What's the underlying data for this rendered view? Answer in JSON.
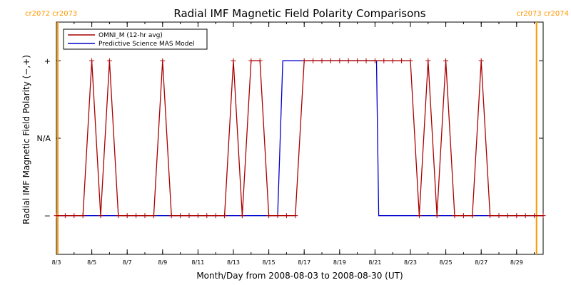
{
  "chart_data": {
    "type": "line",
    "title": "Radial IMF Magnetic Field Polarity Comparisons",
    "xlabel": "Month/Day from 2008-08-03 to 2008-08-30 (UT)",
    "ylabel": "Radial IMF Magnetic Field Polarity (−,+)",
    "xlim": [
      "2008-08-03",
      "2008-08-30 12:00"
    ],
    "ylim": [
      -1.5,
      1.5
    ],
    "x_tick_labels": [
      "8/3",
      "8/5",
      "8/7",
      "8/9",
      "8/11",
      "8/13",
      "8/15",
      "8/17",
      "8/19",
      "8/21",
      "8/23",
      "8/25",
      "8/27",
      "8/29"
    ],
    "x_tick_values": [
      "2008-08-03",
      "2008-08-05",
      "2008-08-07",
      "2008-08-09",
      "2008-08-11",
      "2008-08-13",
      "2008-08-15",
      "2008-08-17",
      "2008-08-19",
      "2008-08-21",
      "2008-08-23",
      "2008-08-25",
      "2008-08-27",
      "2008-08-29"
    ],
    "y_ticks": [
      {
        "value": 1,
        "label": "+"
      },
      {
        "value": 0,
        "label": "N/A"
      },
      {
        "value": -1,
        "label": "−"
      }
    ],
    "legend_position": "top-left",
    "carrington_markers": [
      {
        "x": "2008-08-03",
        "label": "cr2072 cr2073",
        "side": "left"
      },
      {
        "x": "2008-08-30 03:00",
        "label": "cr2073 cr2074",
        "side": "right"
      }
    ],
    "series": [
      {
        "name": "OMNI_M (12-hr avg)",
        "color": "#aa0000",
        "markers": true,
        "points": [
          [
            "2008-08-03 00:00",
            -1
          ],
          [
            "2008-08-03 12:00",
            -1
          ],
          [
            "2008-08-04 00:00",
            -1
          ],
          [
            "2008-08-04 12:00",
            -1
          ],
          [
            "2008-08-05 00:00",
            1
          ],
          [
            "2008-08-05 12:00",
            -1
          ],
          [
            "2008-08-06 00:00",
            1
          ],
          [
            "2008-08-06 12:00",
            -1
          ],
          [
            "2008-08-07 00:00",
            -1
          ],
          [
            "2008-08-07 12:00",
            -1
          ],
          [
            "2008-08-08 00:00",
            -1
          ],
          [
            "2008-08-08 12:00",
            -1
          ],
          [
            "2008-08-09 00:00",
            1
          ],
          [
            "2008-08-09 12:00",
            -1
          ],
          [
            "2008-08-10 00:00",
            -1
          ],
          [
            "2008-08-10 12:00",
            -1
          ],
          [
            "2008-08-11 00:00",
            -1
          ],
          [
            "2008-08-11 12:00",
            -1
          ],
          [
            "2008-08-12 00:00",
            -1
          ],
          [
            "2008-08-12 12:00",
            -1
          ],
          [
            "2008-08-13 00:00",
            1
          ],
          [
            "2008-08-13 12:00",
            -1
          ],
          [
            "2008-08-14 00:00",
            1
          ],
          [
            "2008-08-14 12:00",
            1
          ],
          [
            "2008-08-15 00:00",
            -1
          ],
          [
            "2008-08-15 12:00",
            -1
          ],
          [
            "2008-08-16 00:00",
            -1
          ],
          [
            "2008-08-16 12:00",
            -1
          ],
          [
            "2008-08-17 00:00",
            1
          ],
          [
            "2008-08-17 12:00",
            1
          ],
          [
            "2008-08-18 00:00",
            1
          ],
          [
            "2008-08-18 12:00",
            1
          ],
          [
            "2008-08-19 00:00",
            1
          ],
          [
            "2008-08-19 12:00",
            1
          ],
          [
            "2008-08-20 00:00",
            1
          ],
          [
            "2008-08-20 12:00",
            1
          ],
          [
            "2008-08-21 00:00",
            1
          ],
          [
            "2008-08-21 12:00",
            1
          ],
          [
            "2008-08-22 00:00",
            1
          ],
          [
            "2008-08-22 12:00",
            1
          ],
          [
            "2008-08-23 00:00",
            1
          ],
          [
            "2008-08-23 12:00",
            -1
          ],
          [
            "2008-08-24 00:00",
            1
          ],
          [
            "2008-08-24 12:00",
            -1
          ],
          [
            "2008-08-25 00:00",
            1
          ],
          [
            "2008-08-25 12:00",
            -1
          ],
          [
            "2008-08-26 00:00",
            -1
          ],
          [
            "2008-08-26 12:00",
            -1
          ],
          [
            "2008-08-27 00:00",
            1
          ],
          [
            "2008-08-27 12:00",
            -1
          ],
          [
            "2008-08-28 00:00",
            -1
          ],
          [
            "2008-08-28 12:00",
            -1
          ],
          [
            "2008-08-29 00:00",
            -1
          ],
          [
            "2008-08-29 12:00",
            -1
          ],
          [
            "2008-08-30 00:00",
            -1
          ],
          [
            "2008-08-30 12:00",
            -1
          ]
        ]
      },
      {
        "name": "Predictive Science MAS Model",
        "color": "#0000cc",
        "markers": false,
        "points": [
          [
            "2008-08-03 00:00",
            -1
          ],
          [
            "2008-08-15 12:00",
            -1
          ],
          [
            "2008-08-15 19:00",
            1
          ],
          [
            "2008-08-21 02:00",
            1
          ],
          [
            "2008-08-21 05:00",
            -1
          ],
          [
            "2008-08-30 12:00",
            -1
          ]
        ]
      }
    ]
  }
}
